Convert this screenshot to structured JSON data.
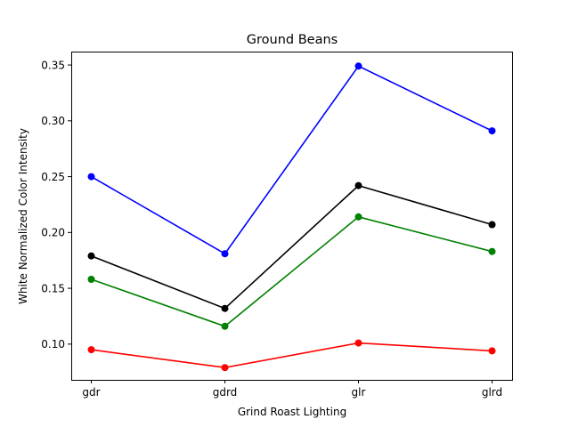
{
  "chart_data": {
    "type": "line",
    "title": "Ground Beans",
    "xlabel": "Grind Roast Lighting",
    "ylabel": "White Normalized Color Intensity",
    "categories": [
      "gdr",
      "gdrd",
      "glr",
      "glrd"
    ],
    "ylim": [
      0.068,
      0.362
    ],
    "yticks": [
      0.1,
      0.15,
      0.2,
      0.25,
      0.3,
      0.35
    ],
    "ytick_labels": [
      "0.10",
      "0.15",
      "0.20",
      "0.25",
      "0.30",
      "0.35"
    ],
    "grid": false,
    "legend": "none",
    "series": [
      {
        "color": "#0000ff",
        "values": [
          0.25,
          0.181,
          0.349,
          0.291
        ]
      },
      {
        "color": "#000000",
        "values": [
          0.179,
          0.132,
          0.242,
          0.207
        ]
      },
      {
        "color": "#008000",
        "values": [
          0.158,
          0.116,
          0.214,
          0.183
        ]
      },
      {
        "color": "#ff0000",
        "values": [
          0.095,
          0.079,
          0.101,
          0.094
        ]
      }
    ]
  }
}
